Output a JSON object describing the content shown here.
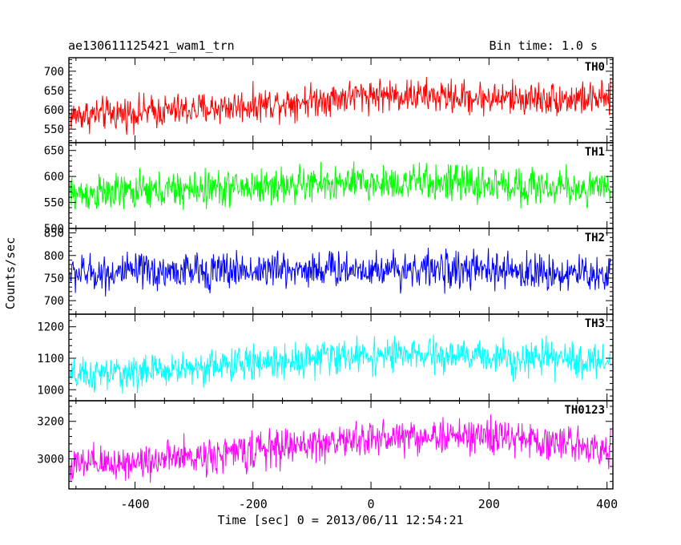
{
  "header": {
    "title": "ae130611125421_wam1_trn",
    "bin_time": "Bin time: 1.0 s"
  },
  "chart_data": {
    "type": "line",
    "xlabel": "Time [sec] 0 = 2013/06/11 12:54:21",
    "ylabel": "Counts/sec",
    "xlim": [
      -512,
      410
    ],
    "x_ticks": [
      -400,
      -200,
      0,
      200,
      400
    ],
    "data_x_range": [
      -510,
      406
    ],
    "bin_seconds": 1.0,
    "panels": [
      {
        "name": "TH0",
        "color": "#ff0000",
        "ylim": [
          515,
          735
        ],
        "y_ticks": [
          550,
          600,
          650,
          700
        ],
        "trend": [
          [
            -510,
            585
          ],
          [
            -300,
            600
          ],
          [
            -100,
            625
          ],
          [
            0,
            640
          ],
          [
            200,
            630
          ],
          [
            406,
            628
          ]
        ],
        "noise_amplitude": 40
      },
      {
        "name": "TH1",
        "color": "#00ff00",
        "ylim": [
          500,
          665
        ],
        "y_ticks": [
          500,
          550,
          600,
          650
        ],
        "trend": [
          [
            -510,
            565
          ],
          [
            -300,
            575
          ],
          [
            -100,
            585
          ],
          [
            100,
            588
          ],
          [
            300,
            580
          ],
          [
            406,
            575
          ]
        ],
        "noise_amplitude": 33
      },
      {
        "name": "TH2",
        "color": "#0000ff",
        "ylim": [
          670,
          860
        ],
        "y_ticks": [
          700,
          750,
          800,
          850
        ],
        "trend": [
          [
            -510,
            760
          ],
          [
            -300,
            765
          ],
          [
            -100,
            770
          ],
          [
            100,
            770
          ],
          [
            300,
            762
          ],
          [
            406,
            758
          ]
        ],
        "noise_amplitude": 38
      },
      {
        "name": "TH3",
        "color": "#00ffff",
        "ylim": [
          965,
          1240
        ],
        "y_ticks": [
          1000,
          1100,
          1200
        ],
        "trend": [
          [
            -510,
            1040
          ],
          [
            -300,
            1070
          ],
          [
            -100,
            1100
          ],
          [
            0,
            1110
          ],
          [
            200,
            1105
          ],
          [
            406,
            1090
          ]
        ],
        "noise_amplitude": 50
      },
      {
        "name": "TH0123",
        "color": "#ff00ff",
        "ylim": [
          2840,
          3310
        ],
        "y_ticks": [
          3000,
          3200
        ],
        "trend": [
          [
            -510,
            2960
          ],
          [
            -300,
            3010
          ],
          [
            -100,
            3080
          ],
          [
            50,
            3120
          ],
          [
            200,
            3120
          ],
          [
            406,
            3060
          ]
        ],
        "noise_amplitude": 90
      }
    ]
  }
}
